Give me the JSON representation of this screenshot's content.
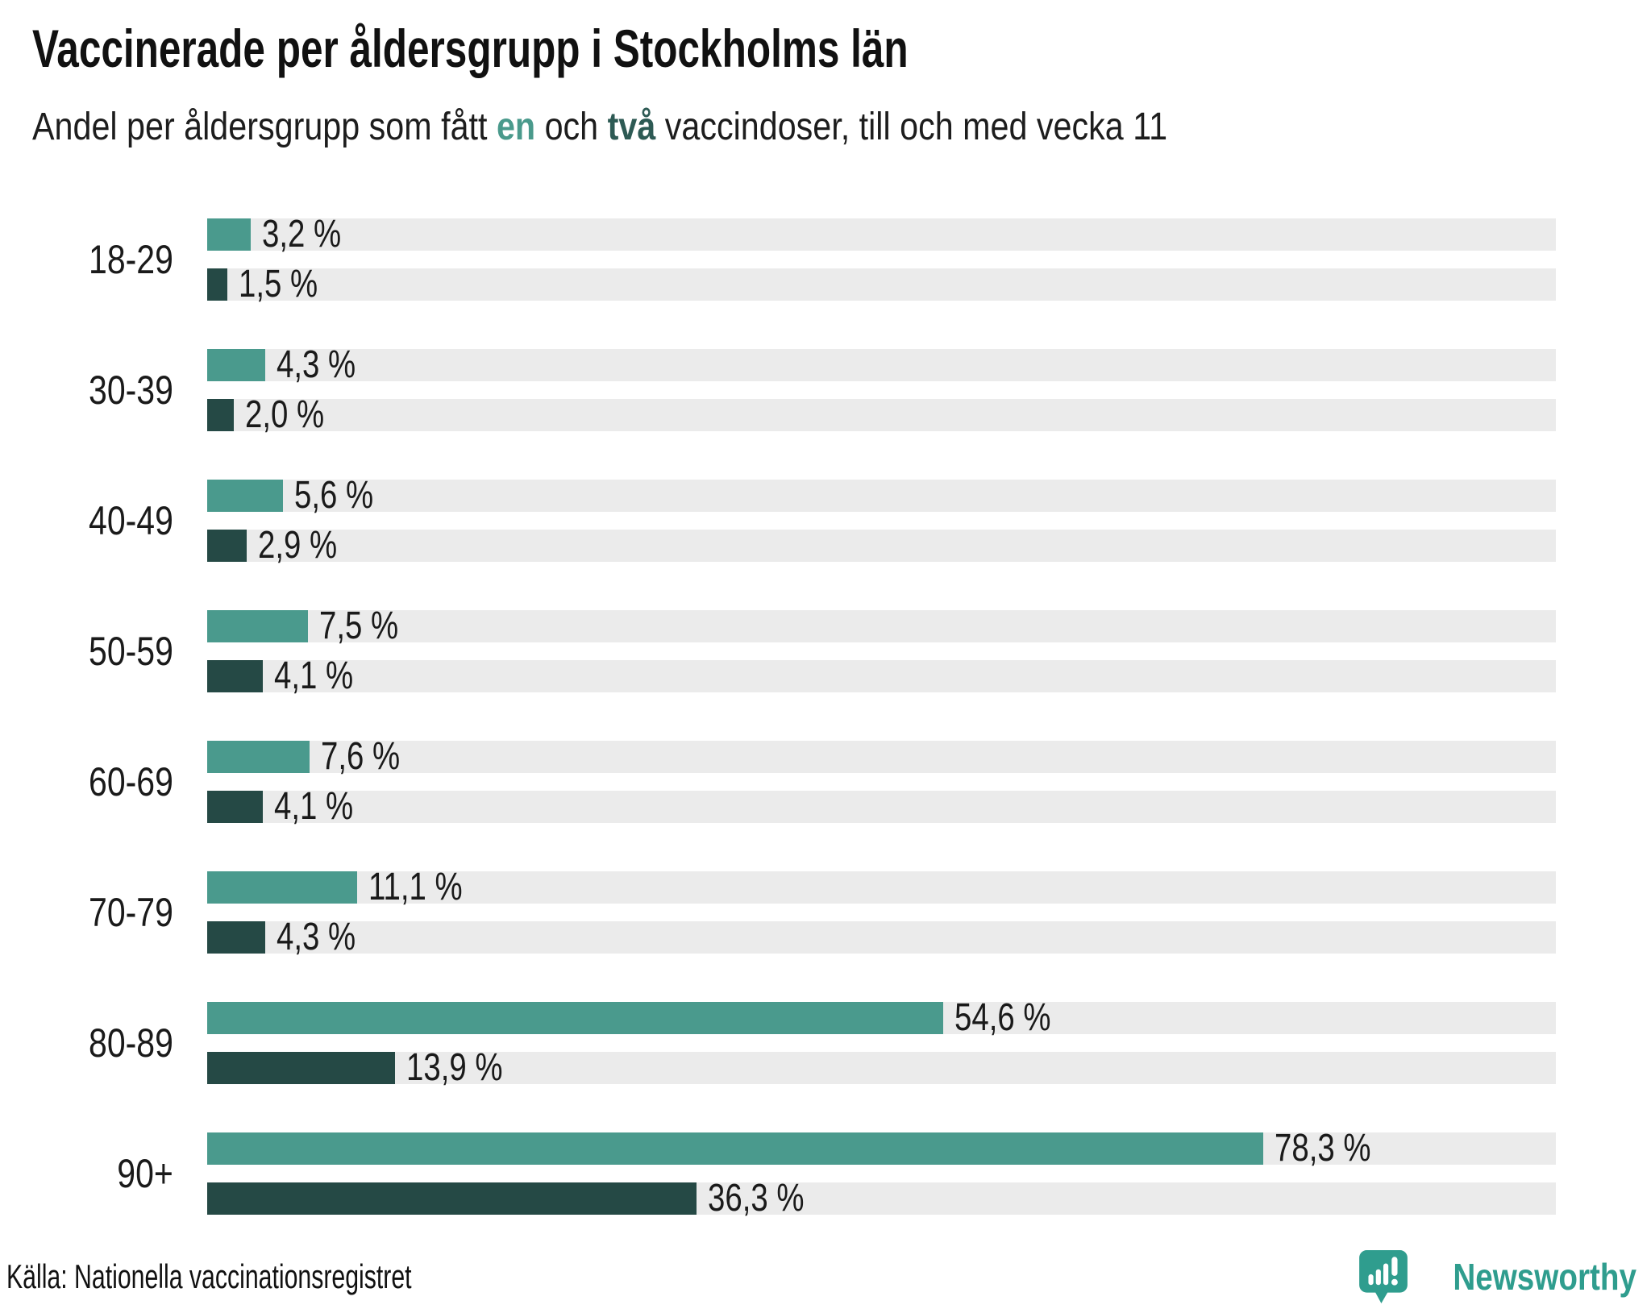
{
  "header": {
    "title": "Vaccinerade per åldersgrupp i Stockholms län",
    "subtitle_part1": "Andel per åldersgrupp som fått ",
    "subtitle_highlight_one": "en",
    "subtitle_part2": " och ",
    "subtitle_highlight_two": "två",
    "subtitle_part3": " vaccindoser, till och med vecka 11"
  },
  "colors": {
    "dose1": "#4a9a8d",
    "dose2": "#254945",
    "track": "#ebebeb",
    "subtitle_highlight_one": "#4a9a8c",
    "subtitle_highlight_two": "#2d5a54",
    "brand": "#2f9d8e"
  },
  "chart_data": {
    "type": "bar",
    "orientation": "horizontal",
    "title": "Vaccinerade per åldersgrupp i Stockholms län",
    "subtitle": "Andel per åldersgrupp som fått en och två vaccindoser, till och med vecka 11",
    "categories": [
      "18-29",
      "30-39",
      "40-49",
      "50-59",
      "60-69",
      "70-79",
      "80-89",
      "90+"
    ],
    "series": [
      {
        "name": "en dos",
        "color": "#4a9a8d",
        "values": [
          3.2,
          4.3,
          5.6,
          7.5,
          7.6,
          11.1,
          54.6,
          78.3
        ],
        "labels": [
          "3,2 %",
          "4,3 %",
          "5,6 %",
          "7,5 %",
          "7,6 %",
          "11,1 %",
          "54,6 %",
          "78,3 %"
        ]
      },
      {
        "name": "två doser",
        "color": "#254945",
        "values": [
          1.5,
          2.0,
          2.9,
          4.1,
          4.1,
          4.3,
          13.9,
          36.3
        ],
        "labels": [
          "1,5 %",
          "2,0 %",
          "2,9 %",
          "4,1 %",
          "4,1 %",
          "4,3 %",
          "13,9 %",
          "36,3 %"
        ]
      }
    ],
    "xlim": [
      0,
      100
    ],
    "value_suffix": " %",
    "grid": false,
    "legend_position": "in-subtitle",
    "track_color": "#ebebeb",
    "source": "Källa: Nationella vaccinationsregistret"
  },
  "footer": {
    "source": "Källa: Nationella vaccinationsregistret",
    "brand": "Newsworthy",
    "brand_icon": "newsworthy-pin-bar-chart-icon"
  }
}
